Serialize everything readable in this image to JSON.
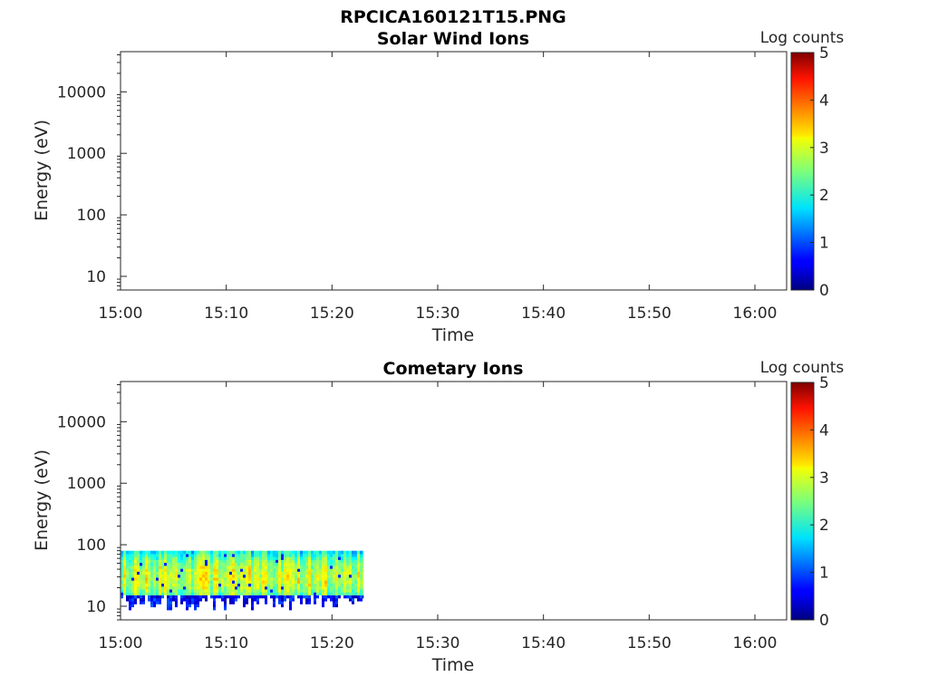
{
  "figure": {
    "title": "RPCICA160121T15.PNG"
  },
  "chart_data": [
    {
      "type": "heatmap",
      "title": "Solar Wind Ions",
      "xlabel": "Time",
      "ylabel": "Energy (eV)",
      "y_scale": "log",
      "ylim": [
        6,
        45000
      ],
      "xlim": [
        "15:00",
        "16:03"
      ],
      "x_ticks": [
        "15:00",
        "15:10",
        "15:20",
        "15:30",
        "15:40",
        "15:50",
        "16:00"
      ],
      "y_ticks": [
        "10",
        "100",
        "1000",
        "10000"
      ],
      "colorbar": {
        "label": "Log counts",
        "range": [
          0,
          5
        ],
        "ticks": [
          "0",
          "1",
          "2",
          "3",
          "4",
          "5"
        ],
        "colormap": "jet"
      },
      "data": {
        "present": false
      }
    },
    {
      "type": "heatmap",
      "title": "Cometary Ions",
      "xlabel": "Time",
      "ylabel": "Energy (eV)",
      "y_scale": "log",
      "ylim": [
        6,
        45000
      ],
      "xlim": [
        "15:00",
        "16:03"
      ],
      "x_ticks": [
        "15:00",
        "15:10",
        "15:20",
        "15:30",
        "15:40",
        "15:50",
        "16:00"
      ],
      "y_ticks": [
        "10",
        "100",
        "1000",
        "10000"
      ],
      "colorbar": {
        "label": "Log counts",
        "range": [
          0,
          5
        ],
        "ticks": [
          "0",
          "1",
          "2",
          "3",
          "4",
          "5"
        ],
        "colormap": "jet"
      },
      "data": {
        "present": true,
        "time_range": [
          "15:00",
          "15:23"
        ],
        "energy_range_eV": [
          7,
          80
        ],
        "peak_energy_eV": 30,
        "peak_log_counts": 2.9,
        "background_log_counts": 1.7,
        "low_energy_edge_eV": 15
      }
    }
  ]
}
